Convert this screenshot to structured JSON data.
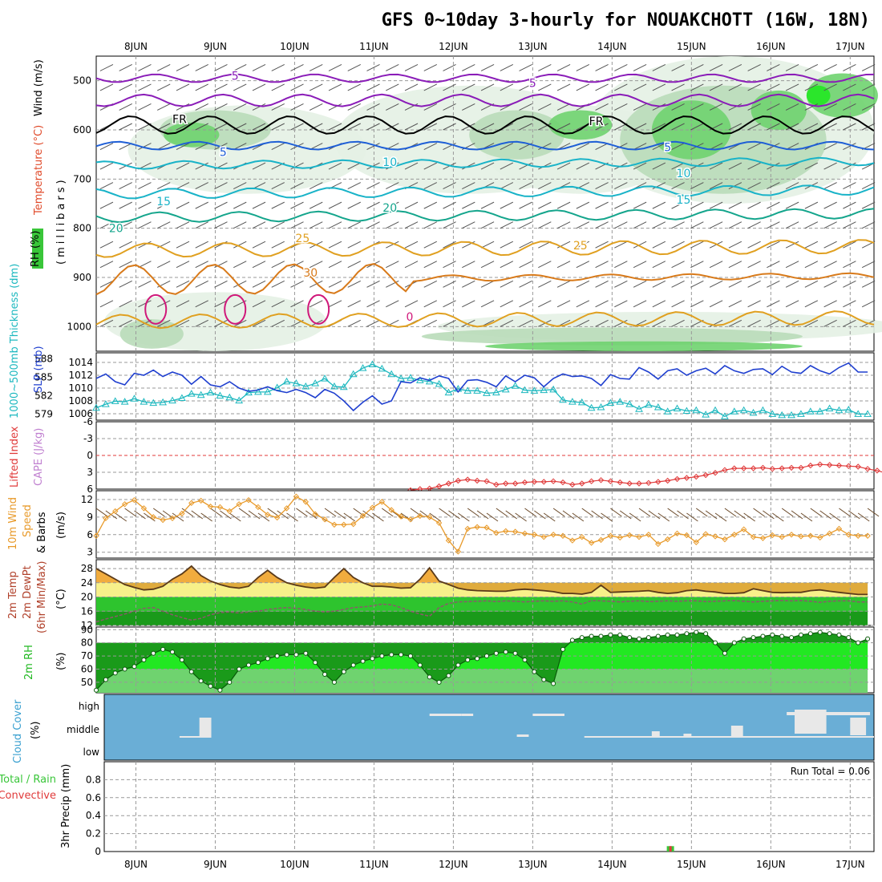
{
  "title": "GFS 0~10day 3-hourly for NOUAKCHOTT (16W, 18N)",
  "colors": {
    "rh_light": "#e4f1e4",
    "rh_mid": "#b9dcb9",
    "rh_dark": "#6fd36f",
    "rh_max": "#22e822",
    "temp_purple": "#8a1cb8",
    "temp_blue": "#1f5fd6",
    "temp_cyan": "#19b3c8",
    "temp_teal": "#14a58c",
    "temp_orange": "#e0a020",
    "temp_dark_orange": "#d87a1a",
    "temp_magenta": "#d0187a",
    "slp": "#1f3fcf",
    "thickness": "#1cb8bf",
    "lifted_index": "#e03a3a",
    "wind": "#e89a2a",
    "temp_fill_warm": "#f0a030",
    "temp_fill_yellow": "#f7f08a",
    "dew_green_light": "#7ee87e",
    "dew_green_mid": "#2ec42e",
    "dew_green_dark": "#1a9a1a",
    "cloud_bg": "#6aaed6",
    "cloud_fill": "#e8e8e8",
    "precip_total": "#39c639",
    "precip_conv": "#e03a3a"
  },
  "chart_data": {
    "type": "meteogram",
    "x_labels": [
      "8JUN",
      "9JUN",
      "10JUN",
      "11JUN",
      "12JUN",
      "13JUN",
      "14JUN",
      "15JUN",
      "16JUN",
      "17JUN"
    ],
    "x_range_days": [
      0,
      9.8
    ],
    "x_first_label_day": 0.5,
    "panels": [
      {
        "name": "upper_air",
        "ylabel_parts": [
          "RH (%)",
          "Temperature (°C)",
          "Wind (m/s)"
        ],
        "ylabel_units": "(millibars)",
        "y_ticks": [
          500,
          600,
          700,
          800,
          900,
          1000
        ],
        "y_range": [
          450,
          1050
        ],
        "contour_labels": [
          {
            "text": "5",
            "day": 1.75,
            "p": 490,
            "color": "temp_purple"
          },
          {
            "text": "5",
            "day": 5.5,
            "p": 505,
            "color": "temp_purple"
          },
          {
            "text": "FR",
            "day": 1.05,
            "p": 578,
            "color": "black"
          },
          {
            "text": "FR",
            "day": 6.3,
            "p": 582,
            "color": "black"
          },
          {
            "text": "5",
            "day": 1.6,
            "p": 645,
            "color": "temp_blue"
          },
          {
            "text": "5",
            "day": 7.2,
            "p": 635,
            "color": "temp_blue"
          },
          {
            "text": "10",
            "day": 3.7,
            "p": 665,
            "color": "temp_cyan"
          },
          {
            "text": "10",
            "day": 7.4,
            "p": 688,
            "color": "temp_cyan"
          },
          {
            "text": "15",
            "day": 0.85,
            "p": 745,
            "color": "temp_cyan"
          },
          {
            "text": "15",
            "day": 7.4,
            "p": 742,
            "color": "temp_cyan"
          },
          {
            "text": "20",
            "day": 0.25,
            "p": 800,
            "color": "temp_teal"
          },
          {
            "text": "20",
            "day": 3.7,
            "p": 758,
            "color": "temp_teal"
          },
          {
            "text": "25",
            "day": 2.6,
            "p": 820,
            "color": "temp_orange"
          },
          {
            "text": "25",
            "day": 6.1,
            "p": 835,
            "color": "temp_orange"
          },
          {
            "text": "30",
            "day": 2.7,
            "p": 890,
            "color": "temp_dark_orange"
          },
          {
            "text": "0",
            "day": 3.95,
            "p": 980,
            "color": "temp_magenta"
          }
        ]
      },
      {
        "name": "slp_thickness",
        "ylabel_left": "1000~500mb Thickness (dm)",
        "ylabel_right": "SLP (mb)",
        "y_ticks_left": [
          579,
          582,
          585,
          588
        ],
        "y_ticks_right": [
          1006,
          1008,
          1010,
          1012,
          1014
        ],
        "slp_range": [
          1005,
          1015.5
        ],
        "slp_values": [
          1011.5,
          1012.2,
          1011.0,
          1010.5,
          1012.3,
          1012.0,
          1012.8,
          1011.8,
          1012.5,
          1012.0,
          1010.6,
          1011.8,
          1010.5,
          1010.2,
          1011.0,
          1010.0,
          1009.5,
          1009.7,
          1010.2,
          1009.6,
          1009.3,
          1009.8,
          1009.3,
          1008.5,
          1009.8,
          1009.2,
          1008.0,
          1006.5,
          1007.8,
          1008.8,
          1007.5,
          1008.0,
          1011.0,
          1010.8,
          1011.6,
          1011.2,
          1011.9,
          1011.5,
          1009.4,
          1011.2,
          1011.3,
          1010.9,
          1010.2,
          1011.9,
          1011.0,
          1012.0,
          1011.6,
          1010.2,
          1011.5,
          1012.2,
          1011.8,
          1011.9,
          1011.5,
          1010.4,
          1012.1,
          1011.5,
          1011.4,
          1013.2,
          1012.5,
          1011.4,
          1012.7,
          1013.0,
          1012.0,
          1012.7,
          1013.1,
          1012.2,
          1013.5,
          1012.7,
          1012.3,
          1012.9,
          1013.0,
          1012.1,
          1013.4,
          1012.5,
          1012.3,
          1013.5,
          1012.7,
          1012.2,
          1013.2,
          1013.9,
          1012.5,
          1012.5
        ],
        "thickness_range": [
          578,
          589
        ],
        "thickness_values": [
          580.0,
          580.6,
          581.1,
          581.0,
          581.5,
          581.0,
          580.8,
          580.9,
          581.2,
          581.6,
          582.3,
          582.1,
          582.5,
          582.0,
          581.7,
          581.2,
          582.5,
          582.6,
          582.6,
          583.3,
          584.3,
          584.0,
          583.5,
          584.0,
          584.8,
          583.5,
          583.4,
          585.5,
          586.5,
          587.1,
          586.4,
          585.5,
          584.8,
          584.9,
          584.5,
          584.3,
          583.9,
          582.5,
          583.1,
          582.8,
          582.8,
          582.4,
          582.5,
          583.0,
          583.6,
          582.9,
          582.8,
          582.9,
          583.0,
          581.3,
          581.0,
          580.9,
          580.0,
          580.1,
          580.8,
          581.0,
          580.6,
          579.8,
          580.5,
          580.1,
          579.4,
          579.9,
          579.5,
          579.6,
          578.9,
          579.6,
          578.6,
          579.4,
          579.6,
          579.2,
          579.6,
          579.0,
          578.8,
          578.8,
          579.0,
          579.4,
          579.4,
          579.9,
          579.6,
          579.7,
          579.0,
          579.0
        ]
      },
      {
        "name": "lifted_index",
        "ylabel_left": "Lifted Index",
        "ylabel_right": "CAPE (J/kg)",
        "y_ticks": [
          -6,
          -3,
          0,
          3,
          6
        ],
        "y_range": [
          -6,
          6
        ],
        "start_index": 33,
        "values": [
          6.2,
          6.0,
          5.9,
          5.5,
          5.0,
          4.5,
          4.3,
          4.5,
          4.6,
          5.2,
          5.0,
          5.0,
          4.8,
          4.7,
          4.7,
          4.6,
          4.8,
          5.2,
          5.0,
          4.6,
          4.4,
          4.6,
          4.8,
          5.0,
          5.0,
          4.9,
          4.7,
          4.5,
          4.2,
          4.0,
          3.8,
          3.5,
          3.1,
          2.6,
          2.3,
          2.3,
          2.3,
          2.2,
          2.4,
          2.3,
          2.2,
          2.2,
          1.8,
          1.6,
          1.7,
          1.8,
          1.9,
          2.0,
          2.4,
          2.7,
          3.2,
          3.5,
          3.8,
          3.7,
          3.5,
          2.6,
          1.8,
          1.6,
          1.4,
          2.2,
          2.5
        ]
      },
      {
        "name": "wind",
        "ylabel_parts": [
          "10m Wind",
          "Speed",
          "& Barbs"
        ],
        "ylabel_units": "(m/s)",
        "y_ticks": [
          3,
          6,
          9,
          12
        ],
        "y_range": [
          2,
          13.5
        ],
        "values": [
          5.8,
          8.8,
          10.0,
          11.2,
          11.9,
          10.5,
          9.0,
          8.5,
          8.8,
          9.6,
          11.4,
          11.8,
          10.8,
          10.7,
          10.0,
          11.2,
          11.9,
          10.7,
          9.4,
          8.9,
          10.5,
          12.5,
          11.6,
          9.5,
          8.6,
          7.7,
          7.7,
          7.8,
          9.2,
          10.6,
          11.6,
          10.2,
          9.1,
          8.6,
          9.2,
          9.0,
          8.0,
          5.0,
          3.1,
          7.0,
          7.3,
          7.2,
          6.3,
          6.6,
          6.5,
          6.2,
          6.0,
          5.6,
          6.0,
          5.8,
          5.0,
          5.6,
          4.6,
          5.1,
          5.8,
          5.5,
          5.9,
          5.6,
          6.0,
          4.4,
          5.2,
          6.2,
          5.9,
          4.7,
          6.1,
          5.7,
          5.2,
          6.0,
          6.9,
          5.6,
          5.4,
          5.9,
          5.6,
          6.0,
          5.7,
          5.8,
          5.5,
          6.2,
          7.0,
          6.0,
          5.8,
          5.8
        ]
      },
      {
        "name": "temp_dewpoint",
        "ylabel_parts": [
          "2m Temp",
          "2m DewPt",
          "(6hr Min/Max)"
        ],
        "ylabel_units": "(°C)",
        "y_ticks": [
          12,
          16,
          20,
          24,
          28
        ],
        "y_range": [
          12,
          30.5
        ],
        "temp_values": [
          28.0,
          26.5,
          25.0,
          23.5,
          22.7,
          22.0,
          22.2,
          23.0,
          25.0,
          26.5,
          28.7,
          26.0,
          24.5,
          23.5,
          22.8,
          22.5,
          23.0,
          25.5,
          27.5,
          25.5,
          24.0,
          23.3,
          22.8,
          22.5,
          22.8,
          25.5,
          28.0,
          25.5,
          24.0,
          23.0,
          23.0,
          22.8,
          22.5,
          22.6,
          25.0,
          28.2,
          24.5,
          23.5,
          22.5,
          22.0,
          21.8,
          21.7,
          21.6,
          21.6,
          22.0,
          22.2,
          22.0,
          21.8,
          21.5,
          21.0,
          21.0,
          20.8,
          21.3,
          23.3,
          21.3,
          21.4,
          21.5,
          21.6,
          21.8,
          21.3,
          21.0,
          21.2,
          21.8,
          22.0,
          21.6,
          21.4,
          21.0,
          21.0,
          21.2,
          22.3,
          21.8,
          21.3,
          21.2,
          21.3,
          21.3,
          21.8,
          22.0,
          21.6,
          21.3,
          21.0,
          20.7,
          20.7
        ],
        "dew_values": [
          13.0,
          13.8,
          14.5,
          15.2,
          16.0,
          16.8,
          17.0,
          16.0,
          15.0,
          14.2,
          13.5,
          14.0,
          15.0,
          15.6,
          15.8,
          15.5,
          15.8,
          16.0,
          16.5,
          16.8,
          17.0,
          16.8,
          16.5,
          16.0,
          15.8,
          16.0,
          16.5,
          17.0,
          17.2,
          17.5,
          18.0,
          17.8,
          17.0,
          16.0,
          15.2,
          14.6,
          17.0,
          18.2,
          18.6,
          18.7,
          18.8,
          18.9,
          18.7,
          18.9,
          18.8,
          18.6,
          18.8,
          18.9,
          18.8,
          18.9,
          18.6,
          18.0,
          19.0,
          18.9,
          18.8,
          18.6,
          18.8,
          18.9,
          18.7,
          18.8,
          18.9,
          18.8,
          18.9,
          18.9,
          18.7,
          18.8,
          18.9,
          19.0,
          18.8,
          18.6,
          18.8,
          18.9,
          19.0,
          18.9,
          19.0,
          18.8,
          18.5,
          18.8,
          18.9,
          18.9,
          18.6,
          18.6
        ]
      },
      {
        "name": "rh",
        "ylabel": "2m RH",
        "ylabel_units": "(%)",
        "y_ticks": [
          50,
          60,
          70,
          80,
          90
        ],
        "y_range": [
          42,
          92
        ],
        "values": [
          44,
          52,
          57,
          60,
          62,
          67,
          72,
          75,
          73,
          67,
          58,
          51,
          47,
          44,
          50,
          60,
          63,
          65,
          68,
          70,
          71,
          71,
          72,
          65,
          56,
          50,
          58,
          63,
          66,
          68,
          70,
          71,
          71,
          70,
          63,
          54,
          50,
          55,
          63,
          67,
          68,
          70,
          72,
          73,
          72,
          67,
          58,
          52,
          49,
          75,
          82,
          84,
          85,
          85,
          86,
          86,
          84,
          83,
          84,
          85,
          86,
          86,
          87,
          88,
          87,
          80,
          72,
          80,
          83,
          84,
          85,
          86,
          85,
          84,
          86,
          87,
          88,
          87,
          86,
          84,
          80,
          83
        ]
      },
      {
        "name": "cloud_cover",
        "ylabel_parts": [
          "Cloud Cover",
          "(%)"
        ],
        "levels": [
          "high",
          "middle",
          "low"
        ]
      },
      {
        "name": "precip",
        "ylabel_parts": [
          "3hr Precip (mm)",
          "Total / Rain",
          "Convective"
        ],
        "y_ticks": [
          0,
          0.2,
          0.4,
          0.6,
          0.8
        ],
        "y_range": [
          0,
          1.0
        ],
        "run_total_label": "Run Total = 0.06",
        "bars": [
          {
            "day": 7.23,
            "value": 0.06
          }
        ]
      }
    ]
  }
}
